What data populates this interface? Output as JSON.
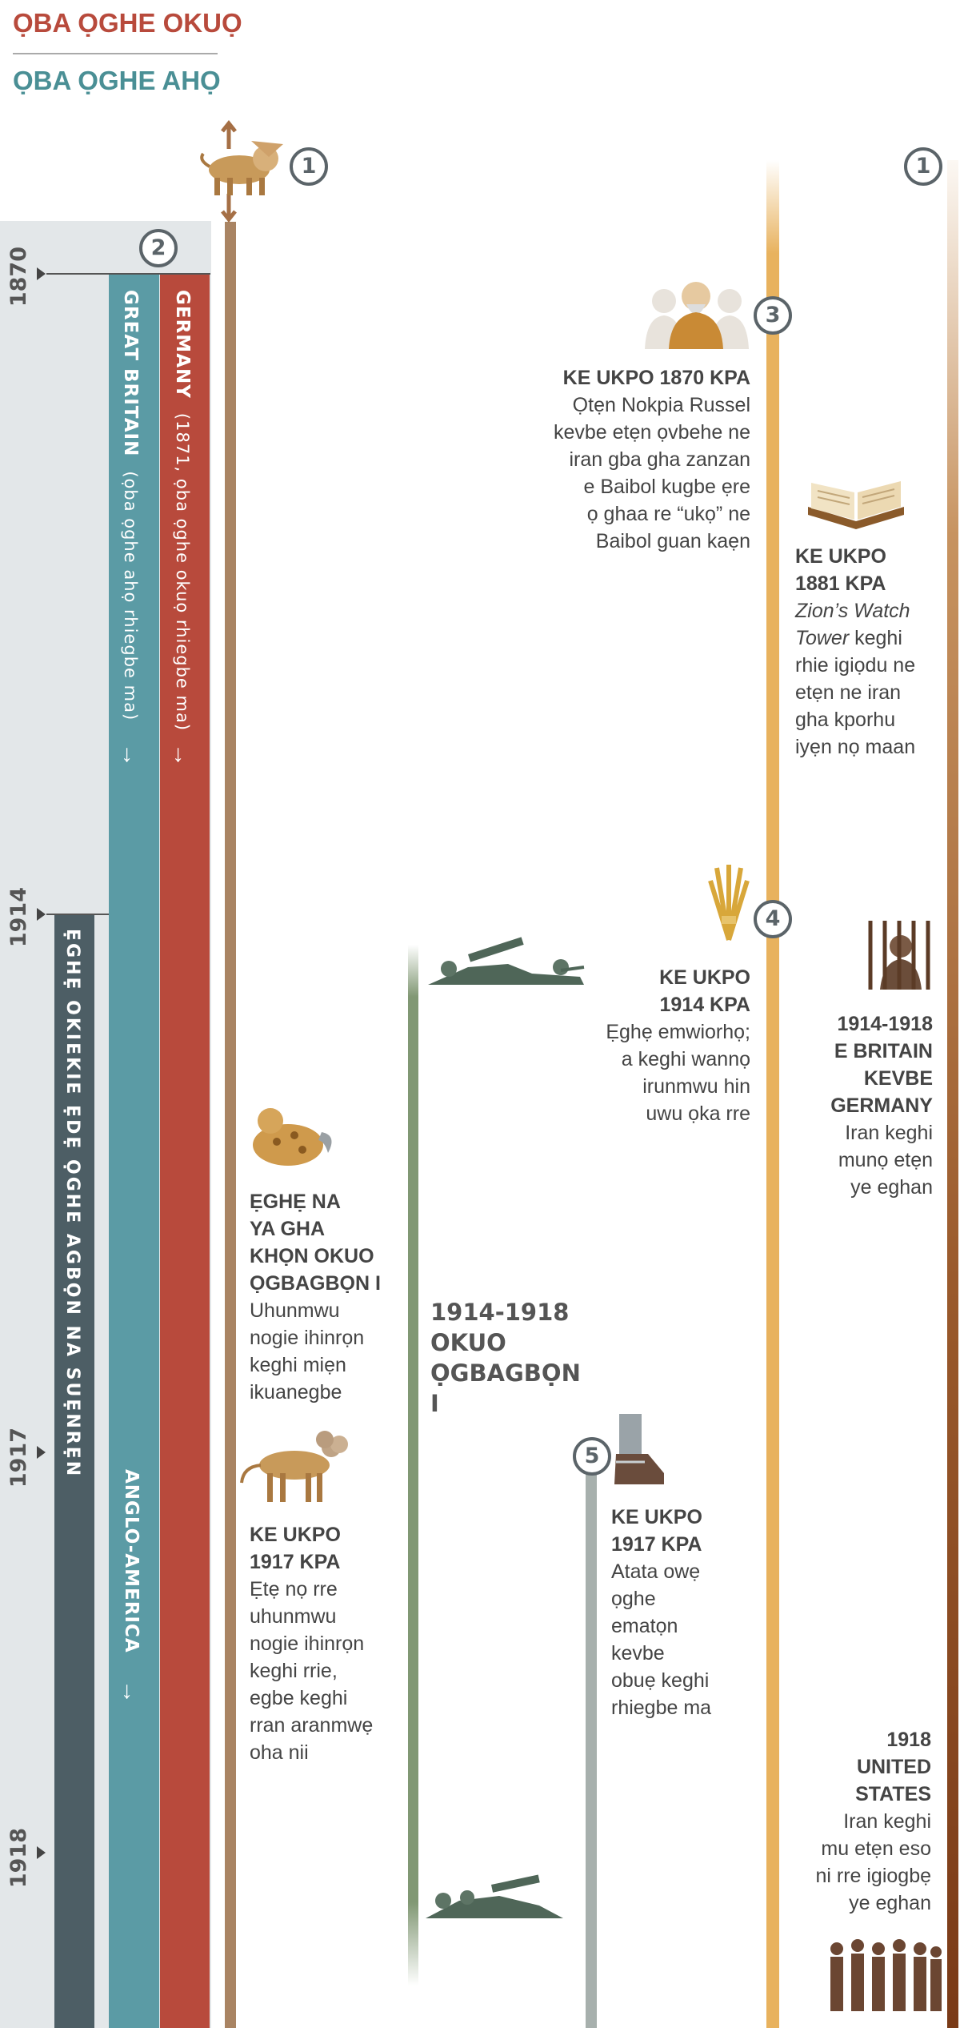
{
  "titles": {
    "primary": "ỌBA ỌGHE OKUỌ",
    "secondary": "ỌBA ỌGHE AHỌ"
  },
  "colors": {
    "germany": "#b84a3c",
    "great_britain": "#5b9ba5",
    "era": "#4d5e65",
    "beast": "#a98463",
    "war": "#819874",
    "gold": "#e8b25e"
  },
  "markers": {
    "m1a": "1",
    "m1b": "1",
    "m2": "2",
    "m3": "3",
    "m4": "4",
    "m5": "5"
  },
  "years": [
    "1870",
    "1914",
    "1917",
    "1918"
  ],
  "bars": {
    "germany_name": "GERMANY",
    "germany_note": "(1871, ọba ọghe okuọ rhiegbe ma)",
    "gb_name": "GREAT BRITAIN",
    "gb_note": "(ọba ọghe ahọ rhiegbe ma)",
    "era_label": "ẸGHẸ OKIEKIE ẸDẸ ỌGHE AGBỌN NA SUẸNRẸN",
    "anglo": "ANGLO-AMERICA",
    "arrow": "↓"
  },
  "events": {
    "e1870_head": "KE UKPO 1870 KPA",
    "e1870_body": [
      "Ọtẹn Nokpia Russel",
      "kevbe etẹn ọvbehe ne",
      "iran gba gha zanzan",
      "e Baibol kugbe ẹre",
      "ọ ghaa re “ukọ” ne",
      "Baibol guan kaẹn"
    ],
    "e1881_head": [
      "KE UKPO",
      "1881 KPA"
    ],
    "e1881_italic": [
      "Zion’s Watch",
      "Tower"
    ],
    "e1881_body": [
      "keghi",
      "rhie igiọdu ne",
      "etẹn ne iran",
      "gha kporhu",
      "iyẹn nọ maan"
    ],
    "e1914_head": [
      "KE UKPO",
      "1914 KPA"
    ],
    "e1914_body": [
      "Ẹghẹ emwiorhọ;",
      "a keghi wannọ",
      "irunmwu hin",
      "uwu ọka rre"
    ],
    "e1914_18_head": [
      "1914-1918",
      "E BRITAIN",
      "KEVBE",
      "GERMANY"
    ],
    "e1914_18_body": [
      "Iran keghi",
      "munọ etẹn",
      "ye eghan"
    ],
    "wound_head": [
      "ẸGHẸ NA",
      "YA GHA",
      "KHỌN OKUO",
      "ỌGBAGBỌN I"
    ],
    "wound_body": [
      "Uhunmwu",
      "nogie ihinrọn",
      "keghi miẹn",
      "ikuanegbe"
    ],
    "ww1": [
      "1914-1918",
      "OKUO",
      "ỌGBAGBỌN I"
    ],
    "e1917a_head": [
      "KE UKPO",
      "1917 KPA"
    ],
    "e1917a_body": [
      "Ẹtẹ nọ rre",
      "uhunmwu",
      "nogie ihinrọn",
      "keghi rrie,",
      "egbe keghi",
      "rran aranmwẹ",
      "oha nii"
    ],
    "e1917b_head": [
      "KE UKPO",
      "1917 KPA"
    ],
    "e1917b_body": [
      "Atata owẹ",
      "ọghe",
      "ematọn",
      "kevbe",
      "obuẹ keghi",
      "rhiegbe ma"
    ],
    "e1918_head": [
      "1918",
      "UNITED",
      "STATES"
    ],
    "e1918_body": [
      "Iran keghi",
      "mu etẹn eso",
      "ni rre igiogbẹ",
      "ye eghan"
    ]
  }
}
